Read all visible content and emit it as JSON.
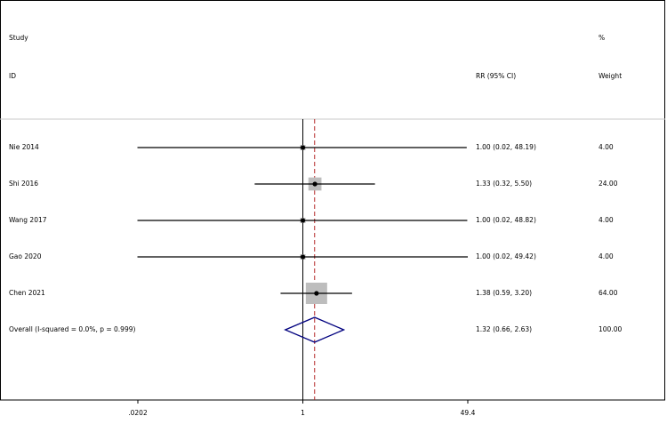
{
  "chart_data": {
    "type": "forest",
    "header": {
      "study": "Study",
      "pct": "%",
      "id": "ID",
      "effect": "RR (95% CI)",
      "weight": "Weight"
    },
    "studies": [
      "Nie 2014",
      "Shi 2016",
      "Wang 2017",
      "Gao 2020",
      "Chen 2021"
    ],
    "rr": [
      1.0,
      1.33,
      1.0,
      1.0,
      1.38
    ],
    "ci_low": [
      0.02,
      0.32,
      0.02,
      0.02,
      0.59
    ],
    "ci_high": [
      48.19,
      5.5,
      48.82,
      49.42,
      3.2
    ],
    "value_labels": [
      "1.00 (0.02, 48.19)",
      "1.33 (0.32, 5.50)",
      "1.00 (0.02, 48.82)",
      "1.00 (0.02, 49.42)",
      "1.38 (0.59, 3.20)"
    ],
    "weights": [
      4.0,
      24.0,
      4.0,
      4.0,
      64.0
    ],
    "weight_labels": [
      "4.00",
      "24.00",
      "4.00",
      "4.00",
      "64.00"
    ],
    "overall": {
      "label": "Overall  (I-squared = 0.0%, p = 0.999)",
      "rr": 1.32,
      "ci_low": 0.66,
      "ci_high": 2.63,
      "value_label": "1.32 (0.66, 2.63)",
      "weight_label": "100.00"
    },
    "xscale": "log",
    "xlim": [
      0.0202,
      49.4
    ],
    "xticks": [
      {
        "value": 0.0202,
        "label": ".0202"
      },
      1,
      {
        "value": 49.4,
        "label": "49.4"
      }
    ],
    "null_line": true,
    "box_color": "#bdbdbd",
    "diamond_color": "#00007f",
    "overall_line_color": "#b22222"
  }
}
